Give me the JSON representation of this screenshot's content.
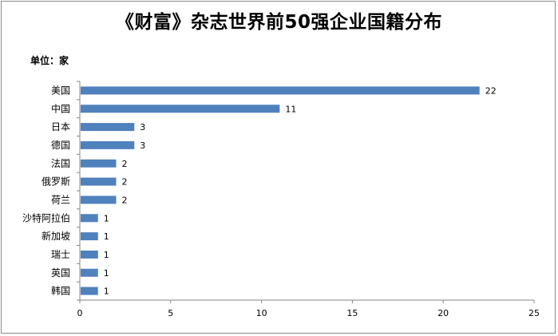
{
  "chart_data": {
    "type": "bar",
    "orientation": "horizontal",
    "title": "《财富》杂志世界前50强企业国籍分布",
    "unit_label": "单位：家",
    "categories": [
      "美国",
      "中国",
      "日本",
      "德国",
      "法国",
      "俄罗斯",
      "荷兰",
      "沙特阿拉伯",
      "新加坡",
      "瑞士",
      "英国",
      "韩国"
    ],
    "values": [
      22,
      11,
      3,
      3,
      2,
      2,
      2,
      1,
      1,
      1,
      1,
      1
    ],
    "xlim": [
      0,
      25
    ],
    "xticks": [
      0,
      5,
      10,
      15,
      20,
      25
    ],
    "grid": false,
    "bar_color": "#4f81bd"
  }
}
